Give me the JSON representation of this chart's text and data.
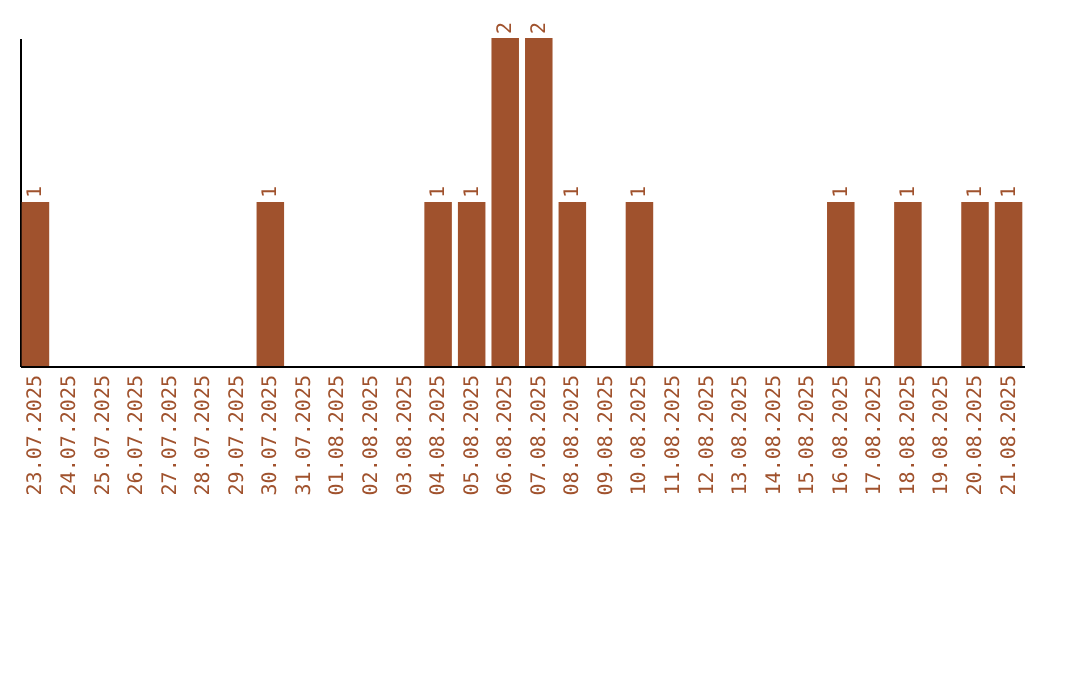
{
  "chart_data": {
    "type": "bar",
    "categories": [
      "23.07.2025",
      "24.07.2025",
      "25.07.2025",
      "26.07.2025",
      "27.07.2025",
      "28.07.2025",
      "29.07.2025",
      "30.07.2025",
      "31.07.2025",
      "01.08.2025",
      "02.08.2025",
      "03.08.2025",
      "04.08.2025",
      "05.08.2025",
      "06.08.2025",
      "07.08.2025",
      "08.08.2025",
      "09.08.2025",
      "10.08.2025",
      "11.08.2025",
      "12.08.2025",
      "13.08.2025",
      "14.08.2025",
      "15.08.2025",
      "16.08.2025",
      "17.08.2025",
      "18.08.2025",
      "19.08.2025",
      "20.08.2025",
      "21.08.2025"
    ],
    "values": [
      1,
      0,
      0,
      0,
      0,
      0,
      0,
      1,
      0,
      0,
      0,
      0,
      1,
      1,
      2,
      2,
      1,
      0,
      1,
      0,
      0,
      0,
      0,
      0,
      1,
      0,
      1,
      0,
      1,
      1
    ],
    "value_labels": [
      "1",
      null,
      null,
      null,
      null,
      null,
      null,
      "1",
      null,
      null,
      null,
      null,
      "1",
      "1",
      "2",
      "2",
      "1",
      null,
      "1",
      null,
      null,
      null,
      null,
      null,
      "1",
      null,
      "1",
      null,
      "1",
      "1"
    ],
    "color": "#a0522d",
    "ylim": [
      0,
      2
    ],
    "tick_labels": "x",
    "grid": false
  }
}
